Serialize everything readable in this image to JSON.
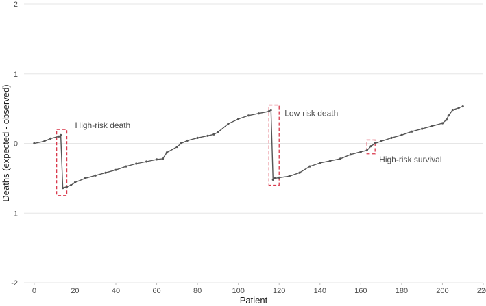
{
  "chart_data": {
    "type": "line",
    "title": "",
    "xlabel": "Patient",
    "ylabel": "Deaths (expected - observed)",
    "xlim": [
      -5,
      220
    ],
    "ylim": [
      -2,
      2
    ],
    "x_ticks": [
      0,
      20,
      40,
      60,
      80,
      100,
      120,
      140,
      160,
      180,
      200,
      220
    ],
    "y_ticks": [
      -2,
      -1,
      0,
      1,
      2
    ],
    "grid": "horizontal",
    "line_color": "#555555",
    "annotation_color": "#d9394c",
    "series": [
      {
        "x": [
          0,
          5,
          8,
          12,
          13,
          14,
          16,
          18,
          20,
          25,
          30,
          35,
          40,
          45,
          50,
          55,
          60,
          63,
          65,
          70,
          72,
          75,
          80,
          85,
          88,
          90,
          95,
          100,
          105,
          110,
          115,
          116,
          117,
          118,
          120,
          125,
          130,
          135,
          140,
          145,
          150,
          155,
          160,
          163,
          165,
          167,
          170,
          175,
          180,
          185,
          190,
          195,
          200,
          202,
          203,
          205,
          208,
          210
        ],
        "y": [
          0.0,
          0.03,
          0.07,
          0.1,
          0.12,
          -0.64,
          -0.62,
          -0.6,
          -0.56,
          -0.5,
          -0.46,
          -0.42,
          -0.38,
          -0.33,
          -0.29,
          -0.26,
          -0.23,
          -0.22,
          -0.13,
          -0.05,
          0.0,
          0.04,
          0.08,
          0.11,
          0.13,
          0.16,
          0.28,
          0.35,
          0.4,
          0.43,
          0.46,
          0.48,
          -0.52,
          -0.5,
          -0.49,
          -0.47,
          -0.42,
          -0.33,
          -0.28,
          -0.25,
          -0.22,
          -0.16,
          -0.12,
          -0.1,
          -0.04,
          0.0,
          0.03,
          0.08,
          0.12,
          0.17,
          0.21,
          0.25,
          0.29,
          0.34,
          0.4,
          0.48,
          0.51,
          0.53
        ]
      }
    ],
    "annotations": [
      {
        "label": "High-risk death",
        "x_range": [
          11,
          16
        ],
        "y_range": [
          -0.75,
          0.2
        ]
      },
      {
        "label": "Low-risk death",
        "x_range": [
          115,
          120
        ],
        "y_range": [
          -0.6,
          0.55
        ]
      },
      {
        "label": "High-risk survival",
        "x_range": [
          163,
          167
        ],
        "y_range": [
          -0.15,
          0.05
        ]
      }
    ]
  }
}
